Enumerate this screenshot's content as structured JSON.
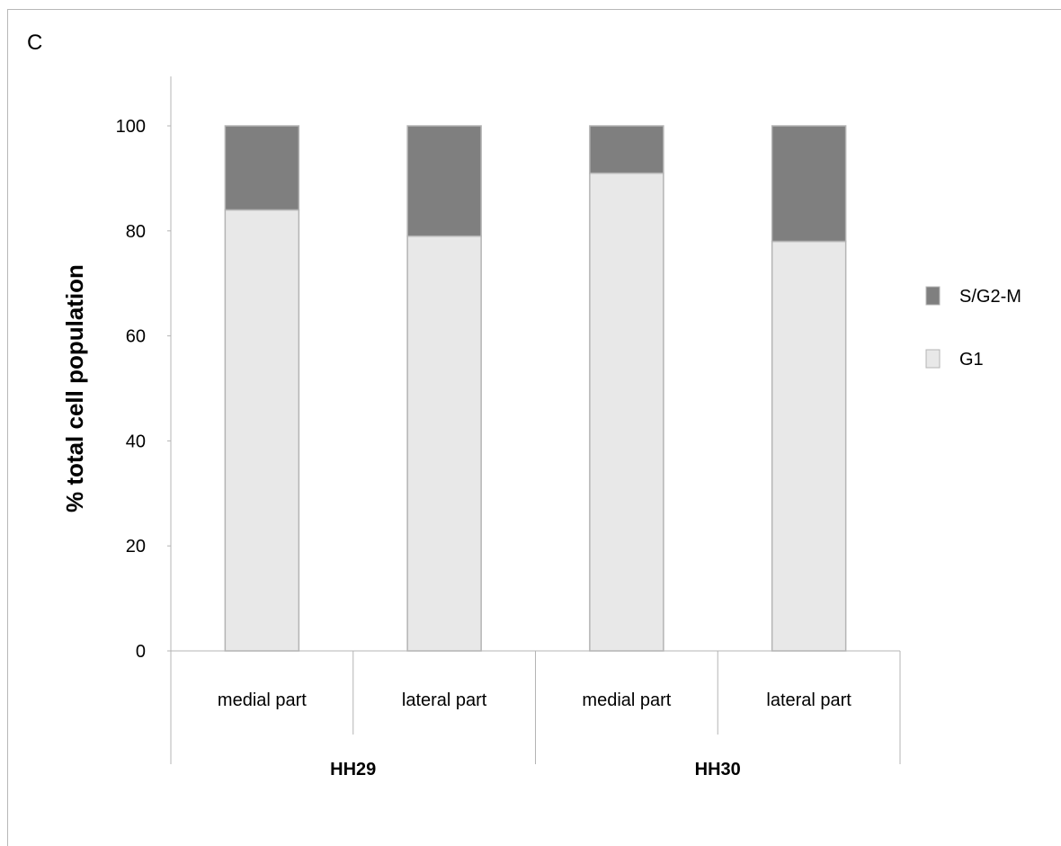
{
  "panel_label": "C",
  "chart_data": {
    "type": "bar",
    "stacked": true,
    "categories": [
      "medial part",
      "lateral part",
      "medial part",
      "lateral part"
    ],
    "groups": [
      {
        "label": "HH29",
        "members": [
          0,
          1
        ]
      },
      {
        "label": "HH30",
        "members": [
          2,
          3
        ]
      }
    ],
    "series": [
      {
        "name": "G1",
        "values": [
          84,
          79,
          91,
          78
        ],
        "color": "#e8e8e8"
      },
      {
        "name": "S/G2-M",
        "values": [
          16,
          21,
          9,
          22
        ],
        "color": "#7f7f7f"
      }
    ],
    "ylabel": "% total cell population",
    "xlabel": "",
    "ylim": [
      0,
      100
    ],
    "yticks": [
      0,
      20,
      40,
      60,
      80,
      100
    ],
    "grid": false,
    "legend": {
      "position": "right",
      "entries": [
        {
          "label": "S/G2-M",
          "color": "#7f7f7f"
        },
        {
          "label": "G1",
          "color": "#e8e8e8"
        }
      ]
    }
  }
}
